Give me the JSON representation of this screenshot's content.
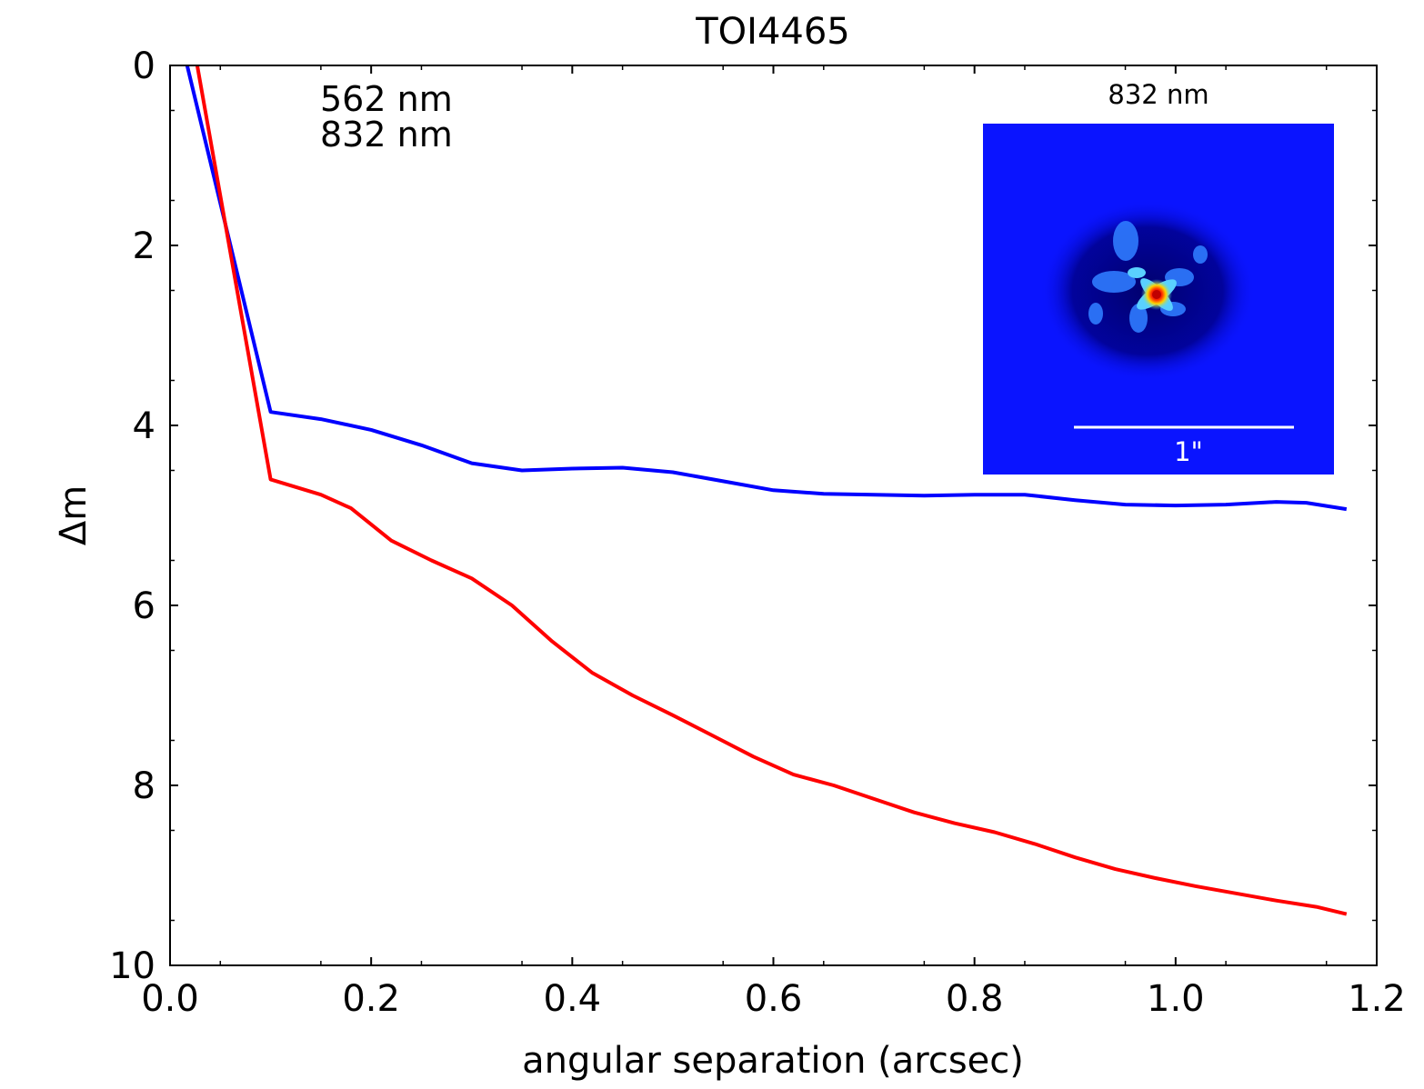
{
  "chart_data": {
    "type": "line",
    "title": "TOI4465",
    "xlabel": "angular separation (arcsec)",
    "ylabel": "Δm",
    "xlim": [
      0.0,
      1.2
    ],
    "ylim": [
      0,
      10
    ],
    "y_inverted": true,
    "x_ticks": [
      0.0,
      0.2,
      0.4,
      0.6,
      0.8,
      1.0,
      1.2
    ],
    "x_tick_labels": [
      "0.0",
      "0.2",
      "0.4",
      "0.6",
      "0.8",
      "1.0",
      "1.2"
    ],
    "y_ticks": [
      0,
      2,
      4,
      6,
      8,
      10
    ],
    "y_tick_labels": [
      "0",
      "2",
      "4",
      "6",
      "8",
      "10"
    ],
    "legend_placement": "top-left",
    "series": [
      {
        "name": "562 nm",
        "color": "#0000ff",
        "x": [
          0.017,
          0.1,
          0.15,
          0.2,
          0.25,
          0.3,
          0.35,
          0.4,
          0.45,
          0.5,
          0.55,
          0.6,
          0.65,
          0.7,
          0.75,
          0.8,
          0.85,
          0.9,
          0.95,
          1.0,
          1.05,
          1.1,
          1.13,
          1.17
        ],
        "y": [
          0.0,
          3.85,
          3.93,
          4.05,
          4.22,
          4.42,
          4.5,
          4.48,
          4.47,
          4.52,
          4.62,
          4.72,
          4.76,
          4.77,
          4.78,
          4.77,
          4.77,
          4.83,
          4.88,
          4.89,
          4.88,
          4.85,
          4.86,
          4.93
        ]
      },
      {
        "name": "832 nm",
        "color": "#ff0000",
        "x": [
          0.027,
          0.1,
          0.15,
          0.18,
          0.22,
          0.26,
          0.3,
          0.34,
          0.38,
          0.42,
          0.46,
          0.5,
          0.54,
          0.58,
          0.62,
          0.66,
          0.7,
          0.74,
          0.78,
          0.82,
          0.86,
          0.9,
          0.94,
          0.98,
          1.02,
          1.06,
          1.1,
          1.14,
          1.17
        ],
        "y": [
          0.0,
          4.6,
          4.77,
          4.92,
          5.28,
          5.5,
          5.7,
          6.0,
          6.4,
          6.75,
          7.0,
          7.22,
          7.45,
          7.68,
          7.88,
          8.0,
          8.15,
          8.3,
          8.42,
          8.52,
          8.65,
          8.8,
          8.93,
          9.03,
          9.12,
          9.2,
          9.28,
          9.35,
          9.43
        ]
      }
    ],
    "inset": {
      "title": "832 nm",
      "scale_label": "1\"",
      "background_color": "#0a14ff",
      "core_color": "#ff2a00"
    }
  }
}
